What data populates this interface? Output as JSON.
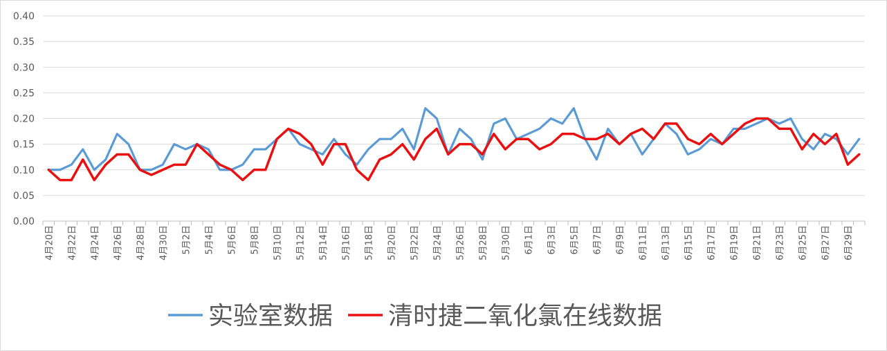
{
  "chart_data": {
    "type": "line",
    "ylim": [
      0,
      0.4
    ],
    "y_ticks": [
      "0.00",
      "0.05",
      "0.10",
      "0.15",
      "0.20",
      "0.25",
      "0.30",
      "0.35",
      "0.40"
    ],
    "y_tick_values": [
      0,
      0.05,
      0.1,
      0.15,
      0.2,
      0.25,
      0.3,
      0.35,
      0.4
    ],
    "grid": true,
    "legend_position": "bottom",
    "categories": [
      "4月20日",
      "4月21日",
      "4月22日",
      "4月23日",
      "4月24日",
      "4月25日",
      "4月26日",
      "4月27日",
      "4月28日",
      "4月29日",
      "4月30日",
      "5月1日",
      "5月2日",
      "5月3日",
      "5月4日",
      "5月5日",
      "5月6日",
      "5月7日",
      "5月8日",
      "5月9日",
      "5月10日",
      "5月11日",
      "5月12日",
      "5月13日",
      "5月14日",
      "5月15日",
      "5月16日",
      "5月17日",
      "5月18日",
      "5月19日",
      "5月20日",
      "5月21日",
      "5月22日",
      "5月23日",
      "5月24日",
      "5月25日",
      "5月26日",
      "5月27日",
      "5月28日",
      "5月29日",
      "5月30日",
      "5月31日",
      "6月1日",
      "6月2日",
      "6月3日",
      "6月4日",
      "6月5日",
      "6月6日",
      "6月7日",
      "6月8日",
      "6月9日",
      "6月10日",
      "6月11日",
      "6月12日",
      "6月13日",
      "6月14日",
      "6月15日",
      "6月16日",
      "6月17日",
      "6月18日",
      "6月19日",
      "6月20日",
      "6月21日",
      "6月22日",
      "6月23日",
      "6月24日",
      "6月25日",
      "6月26日",
      "6月27日",
      "6月28日",
      "6月29日",
      "6月30日"
    ],
    "tick_labels": [
      "4月20日",
      "4月22日",
      "4月24日",
      "4月26日",
      "4月28日",
      "4月30日",
      "5月2日",
      "5月4日",
      "5月6日",
      "5月8日",
      "5月10日",
      "5月12日",
      "5月14日",
      "5月16日",
      "5月18日",
      "5月20日",
      "5月22日",
      "5月24日",
      "5月26日",
      "5月28日",
      "5月30日",
      "6月1日",
      "6月3日",
      "6月5日",
      "6月7日",
      "6月9日",
      "6月11日",
      "6月13日",
      "6月15日",
      "6月17日",
      "6月19日",
      "6月21日",
      "6月23日",
      "6月25日",
      "6月27日",
      "6月29日"
    ],
    "series": [
      {
        "name": "实验室数据",
        "color": "#5b9bd5",
        "values": [
          0.1,
          0.1,
          0.11,
          0.14,
          0.1,
          0.12,
          0.17,
          0.15,
          0.1,
          0.1,
          0.11,
          0.15,
          0.14,
          0.15,
          0.14,
          0.1,
          0.1,
          0.11,
          0.14,
          0.14,
          0.16,
          0.18,
          0.15,
          0.14,
          0.13,
          0.16,
          0.13,
          0.11,
          0.14,
          0.16,
          0.16,
          0.18,
          0.14,
          0.22,
          0.2,
          0.13,
          0.18,
          0.16,
          0.12,
          0.19,
          0.2,
          0.16,
          0.17,
          0.18,
          0.2,
          0.19,
          0.22,
          0.16,
          0.12,
          0.18,
          0.15,
          0.17,
          0.13,
          0.16,
          0.19,
          0.17,
          0.13,
          0.14,
          0.16,
          0.15,
          0.18,
          0.18,
          0.19,
          0.2,
          0.19,
          0.2,
          0.16,
          0.14,
          0.17,
          0.16,
          0.13,
          0.16
        ]
      },
      {
        "name": "清时捷二氧化氯在线数据",
        "color": "#e81010",
        "values": [
          0.1,
          0.08,
          0.08,
          0.12,
          0.08,
          0.11,
          0.13,
          0.13,
          0.1,
          0.09,
          0.1,
          0.11,
          0.11,
          0.15,
          0.13,
          0.11,
          0.1,
          0.08,
          0.1,
          0.1,
          0.16,
          0.18,
          0.17,
          0.15,
          0.11,
          0.15,
          0.15,
          0.1,
          0.08,
          0.12,
          0.13,
          0.15,
          0.12,
          0.16,
          0.18,
          0.13,
          0.15,
          0.15,
          0.13,
          0.17,
          0.14,
          0.16,
          0.16,
          0.14,
          0.15,
          0.17,
          0.17,
          0.16,
          0.16,
          0.17,
          0.15,
          0.17,
          0.18,
          0.16,
          0.19,
          0.19,
          0.16,
          0.15,
          0.17,
          0.15,
          0.17,
          0.19,
          0.2,
          0.2,
          0.18,
          0.18,
          0.14,
          0.17,
          0.15,
          0.17,
          0.11,
          0.13
        ]
      }
    ]
  }
}
